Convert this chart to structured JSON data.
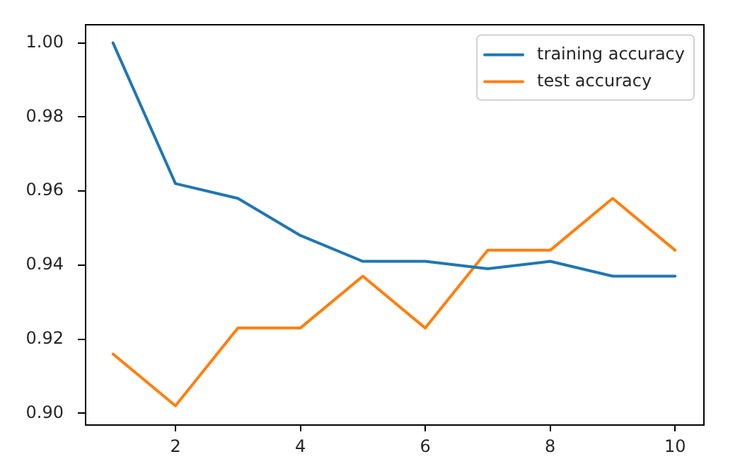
{
  "chart_data": {
    "type": "line",
    "x": [
      1,
      2,
      3,
      4,
      5,
      6,
      7,
      8,
      9,
      10
    ],
    "series": [
      {
        "name": "training accuracy",
        "color": "#1f77b4",
        "values": [
          1.0,
          0.962,
          0.958,
          0.948,
          0.941,
          0.941,
          0.939,
          0.941,
          0.937,
          0.937
        ]
      },
      {
        "name": "test accuracy",
        "color": "#ff7f0e",
        "values": [
          0.916,
          0.902,
          0.923,
          0.923,
          0.937,
          0.923,
          0.944,
          0.944,
          0.958,
          0.944
        ]
      }
    ],
    "xlim": [
      0.55,
      10.45
    ],
    "xticks": [
      2,
      4,
      6,
      8,
      10
    ],
    "ylim": [
      0.897,
      1.005
    ],
    "yticks": [
      {
        "value": 0.9,
        "label": "0.90"
      },
      0.92,
      0.94,
      0.96,
      0.98,
      {
        "value": 1.0,
        "label": "1.00"
      }
    ],
    "grid": false,
    "legend": "top right"
  }
}
